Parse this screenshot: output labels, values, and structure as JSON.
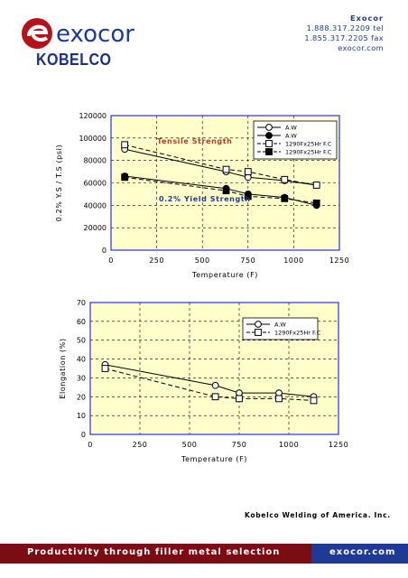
{
  "header": {
    "brand": "exocor",
    "kobelco": "KOBELCO",
    "contact": {
      "company": "Exocor",
      "tel": "1.888.317.2209  tel",
      "fax": "1.855.317.2205 fax",
      "web": "exocor.com"
    }
  },
  "chart_data": [
    {
      "type": "line",
      "xlabel": "Temperature (F)",
      "ylabel": "0.2% Y.S / T.S (psi)",
      "xlim": [
        0,
        1250
      ],
      "ylim": [
        0,
        120000
      ],
      "xticks": [
        0,
        250,
        500,
        750,
        1000,
        1250
      ],
      "yticks": [
        0,
        20000,
        40000,
        60000,
        80000,
        100000,
        120000
      ],
      "annotations": [
        "Tensile Strength",
        "0.2%  Yield Strength"
      ],
      "legend_position": "top-right",
      "series": [
        {
          "name": "A.W",
          "group": "Tensile Strength",
          "marker": "open-circle",
          "line": "solid",
          "x": [
            75,
            630,
            750,
            950,
            1125
          ],
          "y": [
            90000,
            70000,
            65000,
            62000,
            58000
          ]
        },
        {
          "name": "A.W",
          "group": "0.2% Yield Strength",
          "marker": "filled-circle",
          "line": "solid",
          "x": [
            75,
            630,
            750,
            950,
            1125
          ],
          "y": [
            66000,
            55000,
            50000,
            47000,
            40000
          ]
        },
        {
          "name": "1290Fx25Hr F.C",
          "group": "Tensile Strength",
          "marker": "open-square",
          "line": "dashed",
          "x": [
            75,
            630,
            750,
            950,
            1125
          ],
          "y": [
            94000,
            72000,
            70000,
            63000,
            58000
          ]
        },
        {
          "name": "1290Fx25Hr F.C",
          "group": "0.2% Yield Strength",
          "marker": "filled-square",
          "line": "dashed",
          "x": [
            75,
            630,
            750,
            950,
            1125
          ],
          "y": [
            65000,
            53000,
            48000,
            46000,
            42000
          ]
        }
      ]
    },
    {
      "type": "line",
      "xlabel": "Temperature (F)",
      "ylabel": "Elongation (%)",
      "xlim": [
        0,
        1250
      ],
      "ylim": [
        0,
        70
      ],
      "xticks": [
        0,
        250,
        500,
        750,
        1000,
        1250
      ],
      "yticks": [
        0,
        10,
        20,
        30,
        40,
        50,
        60,
        70
      ],
      "legend_position": "top-right",
      "series": [
        {
          "name": "A.W",
          "marker": "open-circle",
          "line": "solid",
          "x": [
            75,
            630,
            750,
            950,
            1125
          ],
          "y": [
            37,
            26,
            22,
            22,
            20
          ]
        },
        {
          "name": "1290Fx25Hr F.C",
          "marker": "open-square",
          "line": "dashed",
          "x": [
            75,
            630,
            750,
            950,
            1125
          ],
          "y": [
            35,
            20,
            19,
            19,
            18
          ]
        }
      ]
    }
  ],
  "footer": {
    "company": "Kobelco Welding of America. Inc.",
    "tagline": "Productivity through filler metal selection",
    "site": "exocor.com"
  },
  "colors": {
    "brand_blue": "#1f3a93",
    "footer_red": "#7a0c14",
    "plot_bg": "#ffffcc",
    "annotation_red": "#c0392b"
  }
}
